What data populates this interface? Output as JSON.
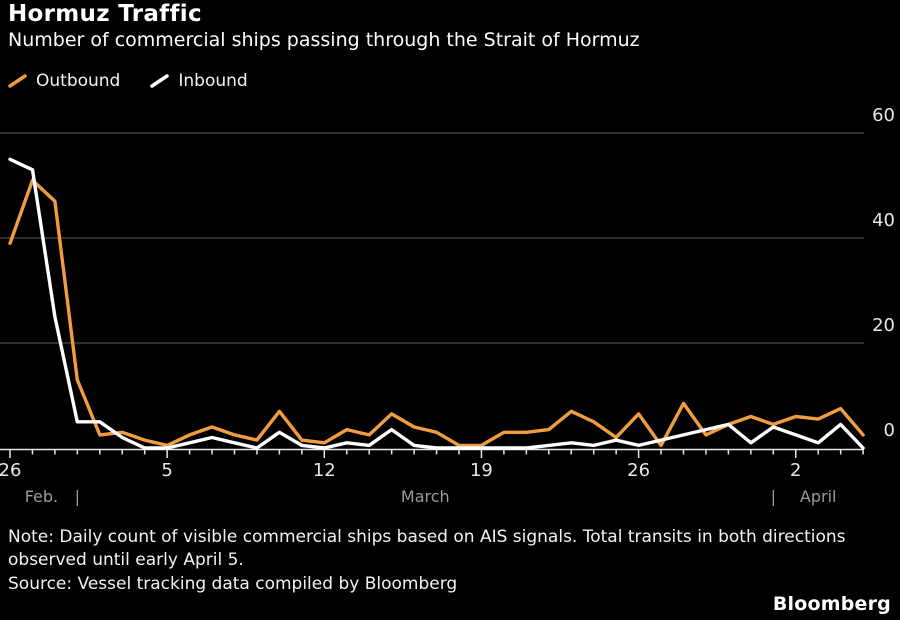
{
  "header": {
    "title": "Hormuz Traffic",
    "subtitle": "Number of commercial ships passing through the Strait of Hormuz"
  },
  "colors": {
    "background": "#000000",
    "outbound_orange": "#F09D3F",
    "inbound_white": "#FFFFFF",
    "gridline": "#4d4d4d",
    "axis": "#e6e6e6",
    "month_label": "#9a9a9a"
  },
  "chart_data": {
    "type": "line",
    "title": "Hormuz Traffic",
    "subtitle": "Number of commercial ships passing through the Strait of Hormuz",
    "xlabel": "",
    "ylabel": "",
    "ylim": [
      0,
      60
    ],
    "yticks": [
      0,
      20,
      40,
      60
    ],
    "grid": "horizontal",
    "legend_position": "top-left",
    "x": [
      "Feb 26",
      "Feb 27",
      "Feb 28",
      "Mar 1",
      "Mar 2",
      "Mar 3",
      "Mar 4",
      "Mar 5",
      "Mar 6",
      "Mar 7",
      "Mar 8",
      "Mar 9",
      "Mar 10",
      "Mar 11",
      "Mar 12",
      "Mar 13",
      "Mar 14",
      "Mar 15",
      "Mar 16",
      "Mar 17",
      "Mar 18",
      "Mar 19",
      "Mar 20",
      "Mar 21",
      "Mar 22",
      "Mar 23",
      "Mar 24",
      "Mar 25",
      "Mar 26",
      "Mar 27",
      "Mar 28",
      "Mar 29",
      "Mar 30",
      "Mar 31",
      "Apr 1",
      "Apr 2",
      "Apr 3",
      "Apr 4",
      "Apr 5"
    ],
    "series": [
      {
        "name": "Outbound",
        "color": "#F09D3F",
        "values": [
          39,
          51,
          47,
          13,
          2.5,
          3,
          1.5,
          0.5,
          2.5,
          4,
          2.5,
          1.5,
          7,
          1.5,
          1,
          3.5,
          2.5,
          6.5,
          4,
          3,
          0.5,
          0.5,
          3,
          3,
          3.5,
          7,
          5,
          2,
          6.5,
          0.5,
          8.5,
          2.5,
          4.5,
          6,
          4.5,
          6,
          5.5,
          7.5,
          2.5
        ]
      },
      {
        "name": "Inbound",
        "color": "#FFFFFF",
        "values": [
          55,
          53,
          25,
          5,
          5,
          2,
          0,
          0,
          1,
          2,
          1,
          0,
          3,
          0.5,
          0,
          1,
          0.5,
          3.5,
          0.5,
          0,
          0,
          0,
          0,
          0,
          0.5,
          1,
          0.5,
          1.5,
          0.5,
          1.5,
          2.5,
          3.5,
          4.5,
          1,
          4,
          2.5,
          1,
          4.5,
          0
        ]
      }
    ],
    "xticks": [
      {
        "label": "26",
        "day": 0
      },
      {
        "label": "5",
        "day": 7
      },
      {
        "label": "12",
        "day": 14
      },
      {
        "label": "19",
        "day": 21
      },
      {
        "label": "26",
        "day": 28
      },
      {
        "label": "2",
        "day": 35
      }
    ],
    "months": [
      {
        "label": "Feb.",
        "day": 1.4
      },
      {
        "label": "|",
        "day": 3
      },
      {
        "label": "March",
        "day": 18.5
      },
      {
        "label": "|",
        "day": 34
      },
      {
        "label": "April",
        "day": 36
      }
    ]
  },
  "footer": {
    "note_line1": "Note: Daily count of visible commercial ships based on AIS signals. Total transits in both directions",
    "note_line2": "observed until early April 5.",
    "source": "Source: Vessel tracking data compiled by Bloomberg",
    "logo": "Bloomberg"
  }
}
